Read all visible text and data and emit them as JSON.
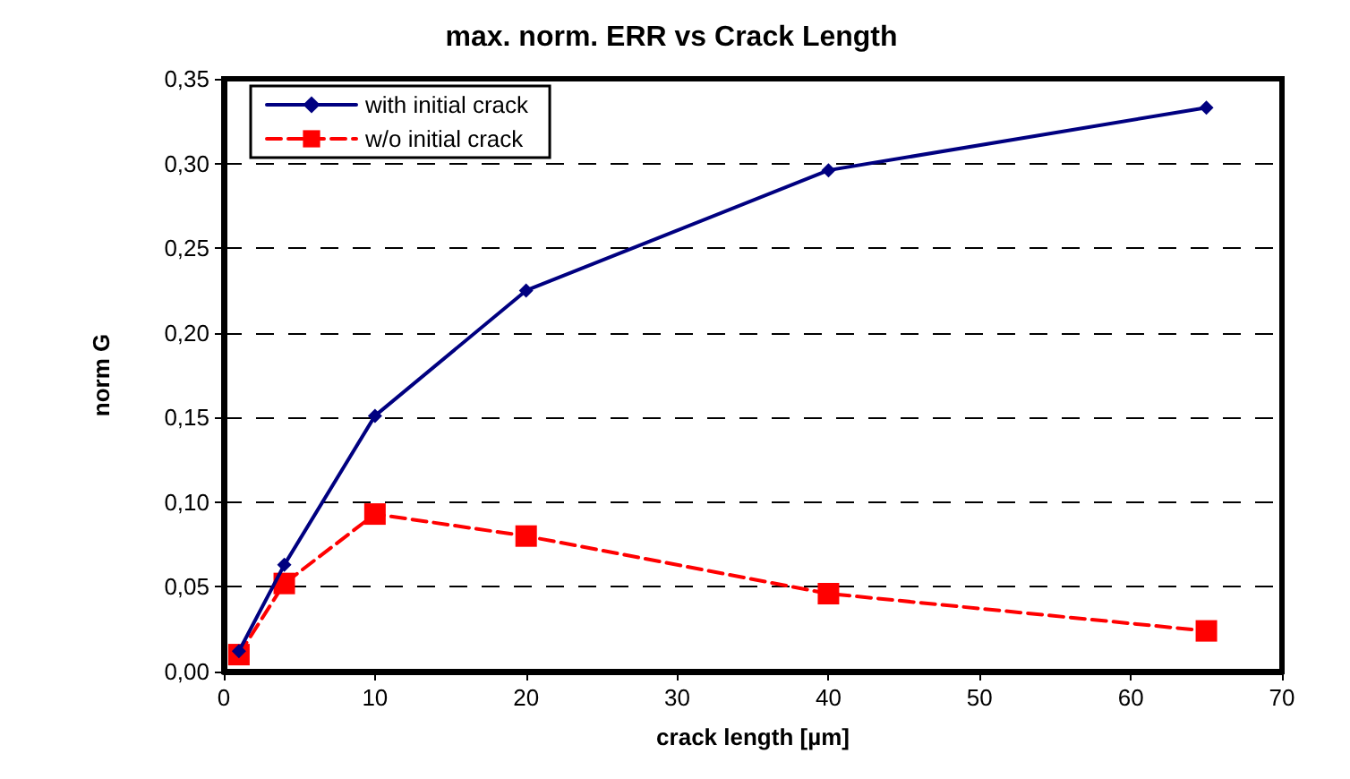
{
  "chart_data": {
    "type": "line",
    "title": "max. norm. ERR vs Crack Length",
    "xlabel": "crack length [µm]",
    "ylabel": "norm G",
    "x": [
      1,
      4,
      10,
      20,
      40,
      65
    ],
    "series": [
      {
        "name": "with initial crack",
        "color": "#000080",
        "values": [
          0.012,
          0.063,
          0.151,
          0.225,
          0.296,
          0.333
        ],
        "marker": "diamond",
        "line_style": "solid"
      },
      {
        "name": "w/o initial crack",
        "color": "#ff0000",
        "values": [
          0.01,
          0.052,
          0.093,
          0.08,
          0.046,
          0.024
        ],
        "marker": "square",
        "line_style": "dashed"
      }
    ],
    "xlim": [
      0,
      70
    ],
    "xticks": [
      0,
      10,
      20,
      30,
      40,
      50,
      60,
      70
    ],
    "ylim": [
      0,
      0.35
    ],
    "yticks": [
      {
        "value": 0,
        "label": "0,00"
      },
      {
        "value": 0.05,
        "label": "0,05"
      },
      {
        "value": 0.1,
        "label": "0,10"
      },
      {
        "value": 0.15,
        "label": "0,15"
      },
      {
        "value": 0.2,
        "label": "0,20"
      },
      {
        "value": 0.25,
        "label": "0,25"
      },
      {
        "value": 0.3,
        "label": "0,30"
      },
      {
        "value": 0.35,
        "label": "0,35"
      }
    ],
    "grid": "y",
    "legend": "top left"
  }
}
